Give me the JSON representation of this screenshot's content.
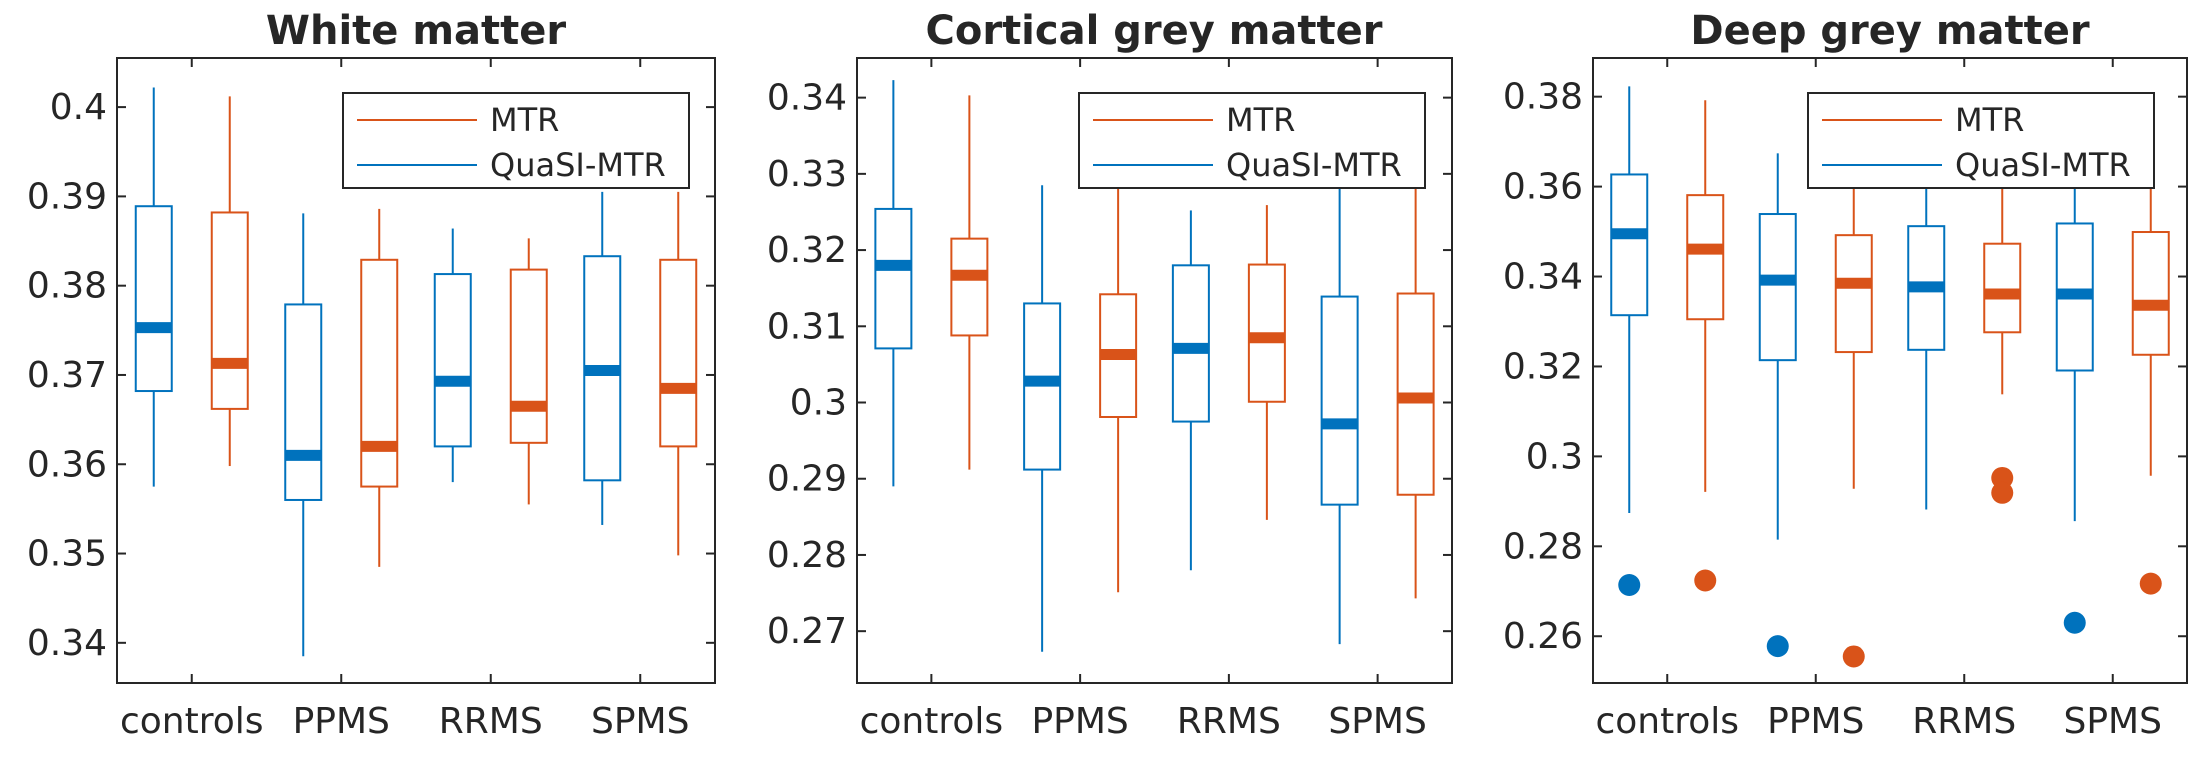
{
  "chart_data": [
    {
      "type": "boxplot",
      "title": "White matter",
      "categories": [
        "controls",
        "PPMS",
        "RRMS",
        "SPMS"
      ],
      "ylim": [
        0.3355,
        0.4055
      ],
      "yticks": [
        0.34,
        0.35,
        0.36,
        0.37,
        0.38,
        0.39,
        0.4
      ],
      "ytick_labels": [
        "0.34",
        "0.35",
        "0.36",
        "0.37",
        "0.38",
        "0.39",
        "0.4"
      ],
      "legend": {
        "position": "top-right",
        "entries": [
          "MTR",
          "QuaSI-MTR"
        ]
      },
      "series": [
        {
          "name": "QuaSI-MTR",
          "color": "#0072BD",
          "boxes": [
            {
              "whislo": 0.3575,
              "q1": 0.3682,
              "med": 0.3753,
              "q3": 0.3889,
              "whishi": 0.4022,
              "fliers": []
            },
            {
              "whislo": 0.3385,
              "q1": 0.356,
              "med": 0.361,
              "q3": 0.3779,
              "whishi": 0.3881,
              "fliers": []
            },
            {
              "whislo": 0.358,
              "q1": 0.362,
              "med": 0.3693,
              "q3": 0.3813,
              "whishi": 0.3864,
              "fliers": []
            },
            {
              "whislo": 0.3532,
              "q1": 0.3582,
              "med": 0.3705,
              "q3": 0.3833,
              "whishi": 0.3905,
              "fliers": []
            }
          ]
        },
        {
          "name": "MTR",
          "color": "#D95319",
          "boxes": [
            {
              "whislo": 0.3598,
              "q1": 0.3662,
              "med": 0.3713,
              "q3": 0.3882,
              "whishi": 0.4012,
              "fliers": []
            },
            {
              "whislo": 0.3485,
              "q1": 0.3575,
              "med": 0.362,
              "q3": 0.3829,
              "whishi": 0.3886,
              "fliers": []
            },
            {
              "whislo": 0.3555,
              "q1": 0.3624,
              "med": 0.3665,
              "q3": 0.3818,
              "whishi": 0.3853,
              "fliers": []
            },
            {
              "whislo": 0.3498,
              "q1": 0.362,
              "med": 0.3685,
              "q3": 0.3829,
              "whishi": 0.3905,
              "fliers": []
            }
          ]
        }
      ]
    },
    {
      "type": "boxplot",
      "title": "Cortical grey matter",
      "categories": [
        "controls",
        "PPMS",
        "RRMS",
        "SPMS"
      ],
      "ylim": [
        0.2632,
        0.3452
      ],
      "yticks": [
        0.27,
        0.28,
        0.29,
        0.3,
        0.31,
        0.32,
        0.33,
        0.34
      ],
      "ytick_labels": [
        "0.27",
        "0.28",
        "0.29",
        "0.3",
        "0.31",
        "0.32",
        "0.33",
        "0.34"
      ],
      "legend": {
        "position": "top-right",
        "entries": [
          "MTR",
          "QuaSI-MTR"
        ]
      },
      "series": [
        {
          "name": "QuaSI-MTR",
          "color": "#0072BD",
          "boxes": [
            {
              "whislo": 0.289,
              "q1": 0.3071,
              "med": 0.318,
              "q3": 0.3254,
              "whishi": 0.3423,
              "fliers": []
            },
            {
              "whislo": 0.2673,
              "q1": 0.2912,
              "med": 0.3028,
              "q3": 0.313,
              "whishi": 0.3285,
              "fliers": []
            },
            {
              "whislo": 0.278,
              "q1": 0.2975,
              "med": 0.3071,
              "q3": 0.318,
              "whishi": 0.3252,
              "fliers": []
            },
            {
              "whislo": 0.2683,
              "q1": 0.2866,
              "med": 0.2972,
              "q3": 0.3139,
              "whishi": 0.3288,
              "fliers": []
            }
          ]
        },
        {
          "name": "MTR",
          "color": "#D95319",
          "boxes": [
            {
              "whislo": 0.2912,
              "q1": 0.3088,
              "med": 0.3167,
              "q3": 0.3215,
              "whishi": 0.3403,
              "fliers": []
            },
            {
              "whislo": 0.2751,
              "q1": 0.2981,
              "med": 0.3063,
              "q3": 0.3142,
              "whishi": 0.3288,
              "fliers": []
            },
            {
              "whislo": 0.2846,
              "q1": 0.3001,
              "med": 0.3085,
              "q3": 0.3181,
              "whishi": 0.3259,
              "fliers": []
            },
            {
              "whislo": 0.2743,
              "q1": 0.2879,
              "med": 0.3006,
              "q3": 0.3143,
              "whishi": 0.3284,
              "fliers": []
            }
          ]
        }
      ]
    },
    {
      "type": "boxplot",
      "title": "Deep grey matter",
      "categories": [
        "controls",
        "PPMS",
        "RRMS",
        "SPMS"
      ],
      "ylim": [
        0.2496,
        0.3886
      ],
      "yticks": [
        0.26,
        0.28,
        0.3,
        0.32,
        0.34,
        0.36,
        0.38
      ],
      "ytick_labels": [
        "0.26",
        "0.28",
        "0.3",
        "0.32",
        "0.34",
        "0.36",
        "0.38"
      ],
      "legend": {
        "position": "top-right",
        "entries": [
          "MTR",
          "QuaSI-MTR"
        ]
      },
      "series": [
        {
          "name": "QuaSI-MTR",
          "color": "#0072BD",
          "boxes": [
            {
              "whislo": 0.2874,
              "q1": 0.3314,
              "med": 0.3495,
              "q3": 0.3627,
              "whishi": 0.3823,
              "fliers": [
                0.2714
              ]
            },
            {
              "whislo": 0.2815,
              "q1": 0.3214,
              "med": 0.3392,
              "q3": 0.3539,
              "whishi": 0.3674,
              "fliers": [
                0.2578
              ]
            },
            {
              "whislo": 0.2882,
              "q1": 0.3237,
              "med": 0.3377,
              "q3": 0.3512,
              "whishi": 0.36,
              "fliers": []
            },
            {
              "whislo": 0.2856,
              "q1": 0.3191,
              "med": 0.3361,
              "q3": 0.3518,
              "whishi": 0.36,
              "fliers": [
                0.263
              ]
            }
          ]
        },
        {
          "name": "MTR",
          "color": "#D95319",
          "boxes": [
            {
              "whislo": 0.2921,
              "q1": 0.3305,
              "med": 0.3461,
              "q3": 0.3581,
              "whishi": 0.3792,
              "fliers": [
                0.2724
              ]
            },
            {
              "whislo": 0.2928,
              "q1": 0.3232,
              "med": 0.3385,
              "q3": 0.3492,
              "whishi": 0.36,
              "fliers": [
                0.2555
              ]
            },
            {
              "whislo": 0.3138,
              "q1": 0.3276,
              "med": 0.3361,
              "q3": 0.3473,
              "whishi": 0.36,
              "fliers": [
                0.2952,
                0.2919
              ]
            },
            {
              "whislo": 0.2957,
              "q1": 0.3226,
              "med": 0.3336,
              "q3": 0.3499,
              "whishi": 0.36,
              "fliers": [
                0.2717
              ]
            }
          ]
        }
      ]
    }
  ]
}
